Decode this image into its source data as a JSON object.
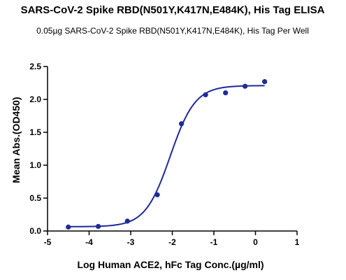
{
  "chart_data": {
    "type": "scatter",
    "title": "SARS-CoV-2 Spike RBD(N501Y,K417N,E484K), His Tag ELISA",
    "subtitle": "0.05µg SARS-CoV-2 Spike RBD(N501Y,K417N,E484K), His Tag Per Well",
    "xlabel": "Log Human ACE2, hFc Tag Conc.(µg/ml)",
    "ylabel": "Mean Abs.(OD450)",
    "xlim": [
      -5,
      1
    ],
    "ylim": [
      0,
      2.5
    ],
    "xticks": [
      "-5",
      "-4",
      "-3",
      "-2",
      "-1",
      "0",
      "1"
    ],
    "yticks": [
      "0.0",
      "0.5",
      "1.0",
      "1.5",
      "2.0",
      "2.5"
    ],
    "grid": false,
    "series": [
      {
        "points": [
          {
            "x": -4.5,
            "y": 0.06
          },
          {
            "x": -3.78,
            "y": 0.07
          },
          {
            "x": -3.08,
            "y": 0.15
          },
          {
            "x": -2.36,
            "y": 0.55
          },
          {
            "x": -1.78,
            "y": 1.63
          },
          {
            "x": -1.2,
            "y": 2.07
          },
          {
            "x": -0.72,
            "y": 2.1
          },
          {
            "x": -0.25,
            "y": 2.2
          },
          {
            "x": 0.22,
            "y": 2.27
          }
        ],
        "fit": {
          "bottom": 0.065,
          "top": 2.21,
          "logec50": -2.05,
          "hill": 1.45
        }
      }
    ],
    "colors": {
      "series": "#1f2a99",
      "axis": "#000000"
    }
  }
}
